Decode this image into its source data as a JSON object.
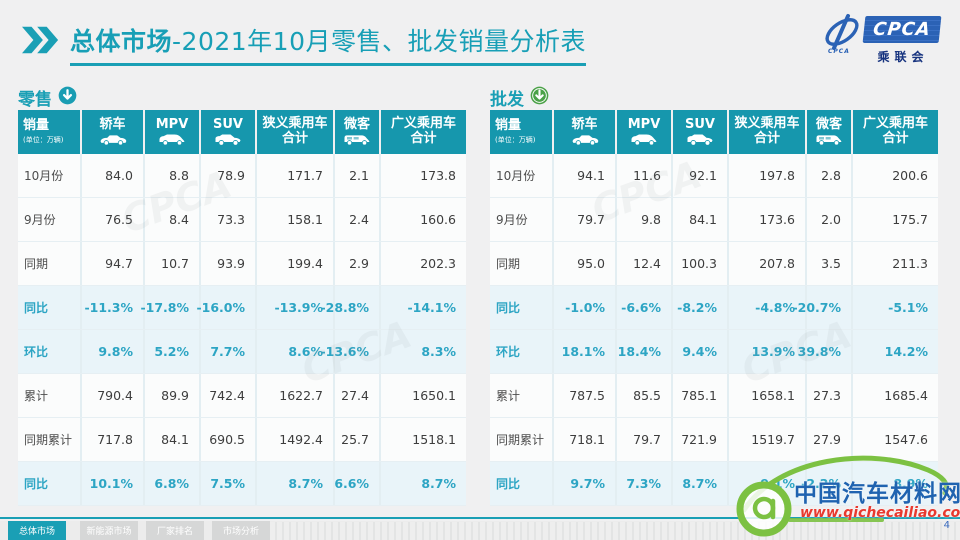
{
  "title": {
    "bold": "总体市场",
    "rest": "-2021年10月零售、批发销量分析表"
  },
  "logo": {
    "box_text": "CPCA",
    "org_name": "乘联会",
    "small_text": "CPCA"
  },
  "columns": [
    {
      "label": "销量",
      "subtitle": "(单位：万辆)",
      "icon": ""
    },
    {
      "label": "轿车",
      "icon": "sedan-icon"
    },
    {
      "label": "MPV",
      "icon": "mpv-icon"
    },
    {
      "label": "SUV",
      "icon": "suv-icon"
    },
    {
      "label": "狭义乘用车\n合计",
      "icon": ""
    },
    {
      "label": "微客",
      "icon": "van-icon"
    },
    {
      "label": "广义乘用车\n合计",
      "icon": ""
    }
  ],
  "tables": {
    "retail": {
      "label": "零售",
      "rows": [
        {
          "label": "10月份",
          "pct": false,
          "values": [
            "84.0",
            "8.8",
            "78.9",
            "171.7",
            "2.1",
            "173.8"
          ]
        },
        {
          "label": "9月份",
          "pct": false,
          "values": [
            "76.5",
            "8.4",
            "73.3",
            "158.1",
            "2.4",
            "160.6"
          ]
        },
        {
          "label": "同期",
          "pct": false,
          "values": [
            "94.7",
            "10.7",
            "93.9",
            "199.4",
            "2.9",
            "202.3"
          ]
        },
        {
          "label": "同比",
          "pct": true,
          "values": [
            "-11.3%",
            "-17.8%",
            "-16.0%",
            "-13.9%",
            "-28.8%",
            "-14.1%"
          ]
        },
        {
          "label": "环比",
          "pct": true,
          "values": [
            "9.8%",
            "5.2%",
            "7.7%",
            "8.6%",
            "-13.6%",
            "8.3%"
          ]
        },
        {
          "label": "累计",
          "pct": false,
          "values": [
            "790.4",
            "89.9",
            "742.4",
            "1622.7",
            "27.4",
            "1650.1"
          ]
        },
        {
          "label": "同期累计",
          "pct": false,
          "values": [
            "717.8",
            "84.1",
            "690.5",
            "1492.4",
            "25.7",
            "1518.1"
          ]
        },
        {
          "label": "同比",
          "pct": true,
          "values": [
            "10.1%",
            "6.8%",
            "7.5%",
            "8.7%",
            "6.6%",
            "8.7%"
          ]
        }
      ]
    },
    "wholesale": {
      "label": "批发",
      "rows": [
        {
          "label": "10月份",
          "pct": false,
          "values": [
            "94.1",
            "11.6",
            "92.1",
            "197.8",
            "2.8",
            "200.6"
          ]
        },
        {
          "label": "9月份",
          "pct": false,
          "values": [
            "79.7",
            "9.8",
            "84.1",
            "173.6",
            "2.0",
            "175.7"
          ]
        },
        {
          "label": "同期",
          "pct": false,
          "values": [
            "95.0",
            "12.4",
            "100.3",
            "207.8",
            "3.5",
            "211.3"
          ]
        },
        {
          "label": "同比",
          "pct": true,
          "values": [
            "-1.0%",
            "-6.6%",
            "-8.2%",
            "-4.8%",
            "-20.7%",
            "-5.1%"
          ]
        },
        {
          "label": "环比",
          "pct": true,
          "values": [
            "18.1%",
            "18.4%",
            "9.4%",
            "13.9%",
            "39.8%",
            "14.2%"
          ]
        },
        {
          "label": "累计",
          "pct": false,
          "values": [
            "787.5",
            "85.5",
            "785.1",
            "1658.1",
            "27.3",
            "1685.4"
          ]
        },
        {
          "label": "同期累计",
          "pct": false,
          "values": [
            "718.1",
            "79.7",
            "721.9",
            "1519.7",
            "27.9",
            "1547.6"
          ]
        },
        {
          "label": "同比",
          "pct": true,
          "values": [
            "9.7%",
            "7.3%",
            "8.7%",
            "9.1%",
            "-2.2%",
            "8.9%"
          ]
        }
      ]
    }
  },
  "footer": {
    "tabs": [
      "总体市场",
      "新能源市场",
      "厂家排名",
      "市场分析"
    ],
    "page_number": "4"
  },
  "watermark": {
    "site": "中国汽车材料网",
    "url": "www.qichecailiao.com",
    "cpca_faint": "CPCA"
  },
  "colors": {
    "teal": "#1697ad",
    "title_teal": "#189fb6",
    "highlight_row": "#e9f4f9",
    "retail_arrow": "#1a9db3",
    "wholesale_arrow": "#4aa147",
    "logo_blue": "#2b62b5",
    "site_blue": "#1f63b0",
    "url_red": "#e8392e",
    "wm_green": "#7cc142"
  }
}
